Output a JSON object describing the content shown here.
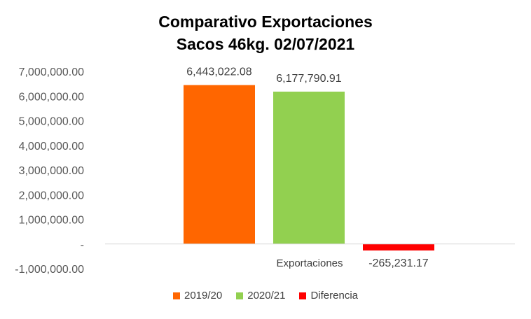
{
  "chart_data": {
    "type": "bar",
    "title_lines": [
      "Comparativo  Exportaciones",
      "Sacos 46kg. 02/07/2021"
    ],
    "categories": [
      "Exportaciones"
    ],
    "series": [
      {
        "name": "2019/20",
        "values": [
          6443022.08
        ],
        "label": "6,443,022.08",
        "color": "#FF6600"
      },
      {
        "name": "2020/21",
        "values": [
          6177790.91
        ],
        "label": "6,177,790.91",
        "color": "#92D050"
      },
      {
        "name": "Diferencia",
        "values": [
          -265231.17
        ],
        "label": "-265,231.17",
        "color": "#FF0000"
      }
    ],
    "ylim": [
      -1000000,
      7000000
    ],
    "yticks": [
      7000000,
      6000000,
      5000000,
      4000000,
      3000000,
      2000000,
      1000000,
      0,
      -1000000
    ],
    "ytick_labels": [
      "7,000,000.00",
      "6,000,000.00",
      "5,000,000.00",
      "4,000,000.00",
      "3,000,000.00",
      "2,000,000.00",
      "1,000,000.00",
      "-",
      "-1,000,000.00"
    ],
    "xlabel": "",
    "ylabel": "",
    "grid": false,
    "legend_position": "bottom"
  }
}
